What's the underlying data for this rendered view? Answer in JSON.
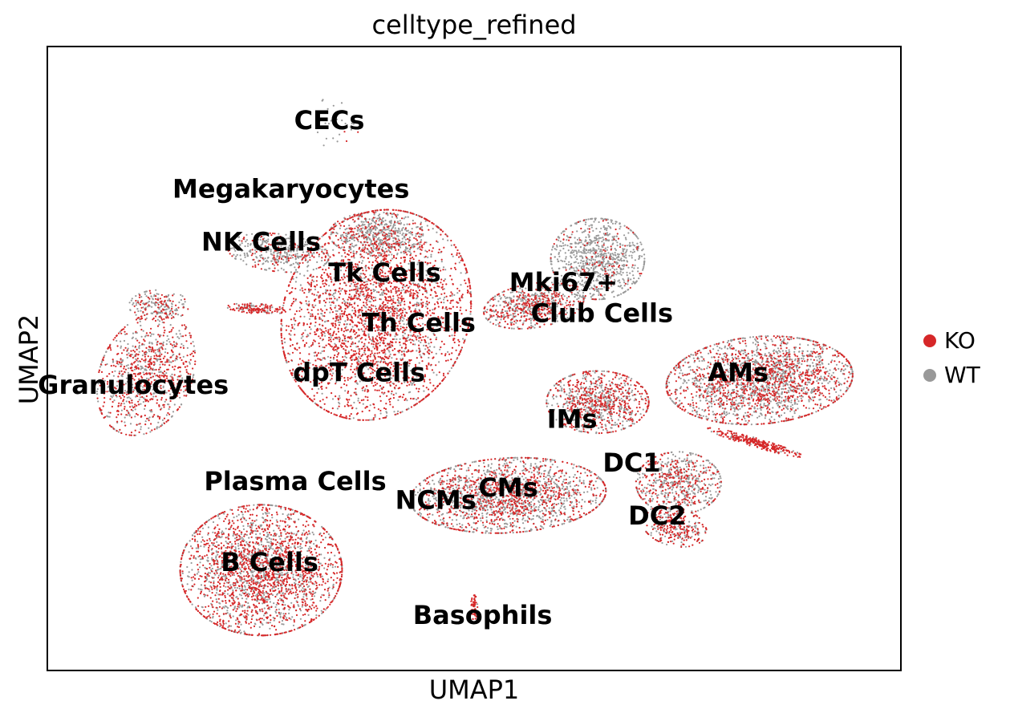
{
  "chart_data": {
    "type": "scatter",
    "title": "celltype_refined",
    "xlabel": "UMAP1",
    "ylabel": "UMAP2",
    "xlim": [
      0,
      100
    ],
    "ylim": [
      0,
      100
    ],
    "grid": false,
    "axis_ticks": false,
    "legend_placement": "right-outside",
    "series": [
      {
        "name": "KO",
        "color": "#d62728"
      },
      {
        "name": "WT",
        "color": "#999999"
      }
    ],
    "cluster_labels": [
      {
        "text": "CECs",
        "x": 33.0,
        "y": 88.0
      },
      {
        "text": "Megakaryocytes",
        "x": 28.5,
        "y": 77.0
      },
      {
        "text": "NK Cells",
        "x": 25.0,
        "y": 68.5
      },
      {
        "text": "Tk Cells",
        "x": 39.5,
        "y": 63.5
      },
      {
        "text": "Th Cells",
        "x": 43.5,
        "y": 55.5
      },
      {
        "text": "dpT Cells",
        "x": 36.5,
        "y": 47.5
      },
      {
        "text": "Granulocytes",
        "x": 10.0,
        "y": 45.5
      },
      {
        "text": "Mki67+",
        "x": 60.5,
        "y": 62.0
      },
      {
        "text": "Club Cells",
        "x": 65.0,
        "y": 57.0
      },
      {
        "text": "AMs",
        "x": 81.0,
        "y": 47.5
      },
      {
        "text": "IMs",
        "x": 61.5,
        "y": 40.0
      },
      {
        "text": "DC1",
        "x": 68.5,
        "y": 33.0
      },
      {
        "text": "Plasma Cells",
        "x": 29.0,
        "y": 30.0
      },
      {
        "text": "CMs",
        "x": 54.0,
        "y": 29.0
      },
      {
        "text": "NCMs",
        "x": 45.5,
        "y": 27.0
      },
      {
        "text": "DC2",
        "x": 71.5,
        "y": 24.5
      },
      {
        "text": "B Cells",
        "x": 26.0,
        "y": 17.0
      },
      {
        "text": "Basophils",
        "x": 51.0,
        "y": 8.5
      }
    ],
    "point_clusters": [
      {
        "cx": 25.0,
        "cy": 16.0,
        "rx": 9.5,
        "ry": 10.5,
        "angle": 0,
        "n": 2600,
        "ko": 0.58
      },
      {
        "cx": 38.5,
        "cy": 57.0,
        "rx": 11.0,
        "ry": 17.0,
        "angle": -8,
        "n": 3200,
        "ko": 0.72
      },
      {
        "cx": 27.0,
        "cy": 67.0,
        "rx": 6.0,
        "ry": 3.0,
        "angle": -10,
        "n": 420,
        "ko": 0.25
      },
      {
        "cx": 38.5,
        "cy": 70.0,
        "rx": 5.5,
        "ry": 3.5,
        "angle": 0,
        "n": 500,
        "ko": 0.15
      },
      {
        "cx": 11.5,
        "cy": 47.5,
        "rx": 5.5,
        "ry": 10.0,
        "angle": -12,
        "n": 950,
        "ko": 0.55
      },
      {
        "cx": 64.5,
        "cy": 66.0,
        "rx": 5.5,
        "ry": 6.5,
        "angle": 0,
        "n": 900,
        "ko": 0.12
      },
      {
        "cx": 57.0,
        "cy": 58.5,
        "rx": 6.0,
        "ry": 3.5,
        "angle": 15,
        "n": 700,
        "ko": 0.42
      },
      {
        "cx": 83.5,
        "cy": 46.5,
        "rx": 11.0,
        "ry": 7.0,
        "angle": 8,
        "n": 2300,
        "ko": 0.42
      },
      {
        "cx": 64.5,
        "cy": 43.0,
        "rx": 6.0,
        "ry": 5.0,
        "angle": 0,
        "n": 900,
        "ko": 0.48
      },
      {
        "cx": 54.0,
        "cy": 28.0,
        "rx": 11.5,
        "ry": 6.0,
        "angle": 5,
        "n": 2000,
        "ko": 0.42
      },
      {
        "cx": 74.0,
        "cy": 30.0,
        "rx": 5.0,
        "ry": 5.0,
        "angle": 0,
        "n": 650,
        "ko": 0.4
      },
      {
        "cx": 73.5,
        "cy": 23.0,
        "rx": 4.0,
        "ry": 3.0,
        "angle": -30,
        "n": 320,
        "ko": 0.55
      },
      {
        "cx": 83.0,
        "cy": 36.5,
        "rx": 6.0,
        "ry": 0.7,
        "angle": -22,
        "n": 300,
        "ko": 0.9
      },
      {
        "cx": 50.0,
        "cy": 10.0,
        "rx": 0.4,
        "ry": 2.0,
        "angle": 0,
        "n": 60,
        "ko": 0.9
      },
      {
        "cx": 34.0,
        "cy": 88.0,
        "rx": 2.5,
        "ry": 5.0,
        "angle": 0,
        "n": 30,
        "ko": 0.25
      },
      {
        "cx": 24.5,
        "cy": 58.0,
        "rx": 3.5,
        "ry": 0.8,
        "angle": -5,
        "n": 150,
        "ko": 0.65
      },
      {
        "cx": 13.0,
        "cy": 58.5,
        "rx": 3.5,
        "ry": 2.5,
        "angle": 0,
        "n": 200,
        "ko": 0.35
      }
    ]
  },
  "legend": {
    "items": [
      {
        "label": "KO",
        "color": "#d62728"
      },
      {
        "label": "WT",
        "color": "#999999"
      }
    ]
  }
}
